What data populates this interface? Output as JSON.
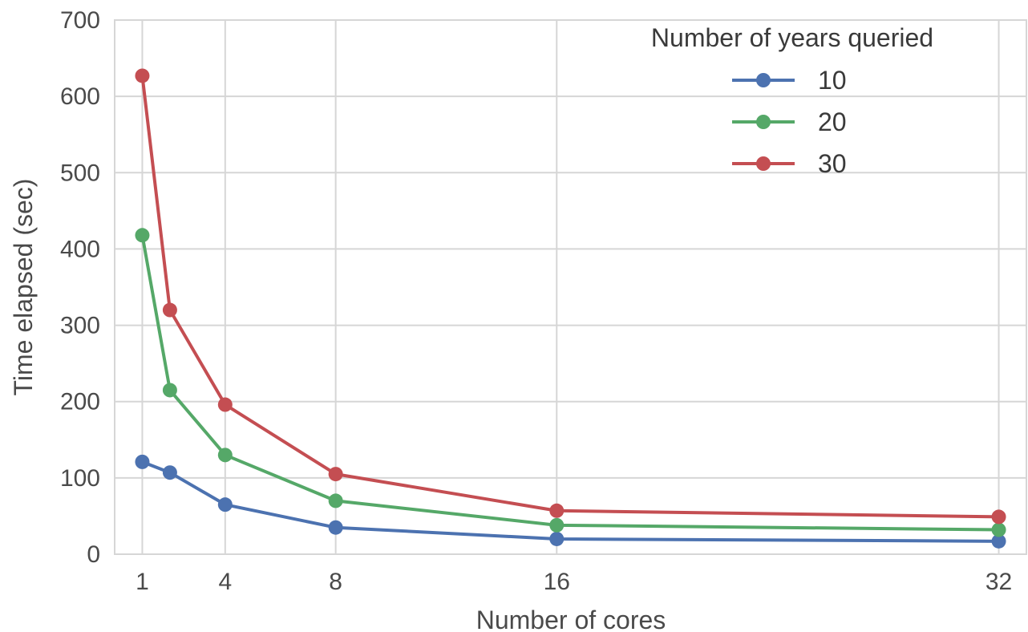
{
  "chart_data": {
    "type": "line",
    "xlabel": "Number of cores",
    "ylabel": "Time elapsed (sec)",
    "xlim": [
      0,
      33
    ],
    "ylim": [
      0,
      700
    ],
    "xticks": [
      1,
      4,
      8,
      16,
      32
    ],
    "yticks": [
      0,
      100,
      200,
      300,
      400,
      500,
      600,
      700
    ],
    "grid": true,
    "legend": {
      "title": "Number of years queried",
      "position": "top-right"
    },
    "x": [
      1,
      2,
      4,
      8,
      16,
      32
    ],
    "series": [
      {
        "name": "10",
        "color": "#4c72b0",
        "values": [
          121,
          107,
          65,
          35,
          20,
          17
        ]
      },
      {
        "name": "20",
        "color": "#55a868",
        "values": [
          418,
          215,
          130,
          70,
          38,
          32
        ]
      },
      {
        "name": "30",
        "color": "#c44e52",
        "values": [
          627,
          320,
          196,
          105,
          57,
          49
        ]
      }
    ]
  }
}
